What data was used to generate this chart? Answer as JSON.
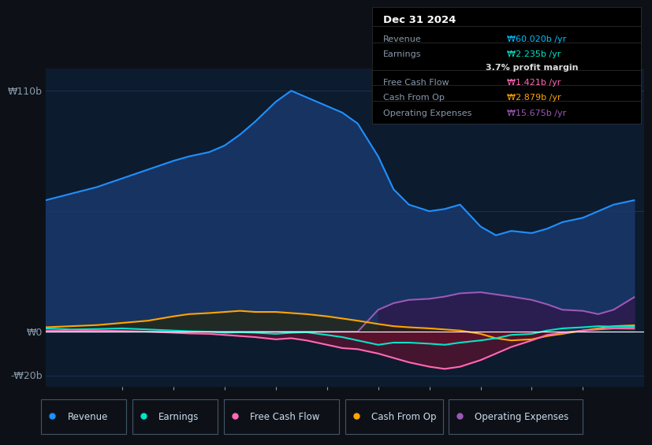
{
  "bg_color": "#0d1117",
  "plot_bg_color": "#0d1b2e",
  "grid_color": "#1e3a5f",
  "title_text": "Dec 31 2024",
  "ylabel_top": "₩110b",
  "ylabel_zero": "₩0",
  "ylabel_bottom": "-₩20b",
  "ylim": [
    -25,
    120
  ],
  "xlim": [
    2013.5,
    2025.2
  ],
  "x_ticks": [
    2015,
    2016,
    2017,
    2018,
    2019,
    2020,
    2021,
    2022,
    2023,
    2024
  ],
  "years": [
    2013.5,
    2014.0,
    2014.5,
    2015.0,
    2015.5,
    2016.0,
    2016.3,
    2016.7,
    2017.0,
    2017.3,
    2017.6,
    2018.0,
    2018.3,
    2018.6,
    2019.0,
    2019.3,
    2019.6,
    2020.0,
    2020.3,
    2020.6,
    2021.0,
    2021.3,
    2021.6,
    2022.0,
    2022.3,
    2022.6,
    2023.0,
    2023.3,
    2023.6,
    2024.0,
    2024.3,
    2024.6,
    2025.0
  ],
  "revenue": [
    60,
    63,
    66,
    70,
    74,
    78,
    80,
    82,
    85,
    90,
    96,
    105,
    110,
    107,
    103,
    100,
    95,
    80,
    65,
    58,
    55,
    56,
    58,
    48,
    44,
    46,
    45,
    47,
    50,
    52,
    55,
    58,
    60
  ],
  "earnings": [
    1.5,
    1.0,
    1.2,
    1.5,
    1.0,
    0.5,
    0.2,
    0.0,
    -0.5,
    -0.3,
    -0.5,
    -1.0,
    -0.5,
    -0.3,
    -1.5,
    -2.5,
    -4.0,
    -6.0,
    -5.0,
    -5.0,
    -5.5,
    -6.0,
    -5.0,
    -4.0,
    -3.0,
    -1.5,
    -1.0,
    0.5,
    1.5,
    2.0,
    2.5,
    2.3,
    2.2
  ],
  "free_cash_flow": [
    0.5,
    0.3,
    0.5,
    0.3,
    0.0,
    -0.5,
    -0.8,
    -1.0,
    -1.5,
    -2.0,
    -2.5,
    -3.5,
    -3.0,
    -4.0,
    -6.0,
    -7.5,
    -8.0,
    -10.0,
    -12.0,
    -14.0,
    -16.0,
    -17.0,
    -16.0,
    -13.0,
    -10.0,
    -7.0,
    -4.0,
    -1.5,
    -0.5,
    0.5,
    1.0,
    1.5,
    1.4
  ],
  "cash_from_op": [
    2.0,
    2.5,
    3.0,
    4.0,
    5.0,
    7.0,
    8.0,
    8.5,
    9.0,
    9.5,
    9.0,
    9.0,
    8.5,
    8.0,
    7.0,
    6.0,
    5.0,
    3.5,
    2.5,
    2.0,
    1.5,
    1.0,
    0.5,
    -1.0,
    -3.0,
    -4.0,
    -3.5,
    -2.0,
    -1.0,
    0.5,
    1.5,
    2.5,
    2.9
  ],
  "operating_expenses": [
    0.0,
    0.0,
    0.0,
    0.0,
    0.0,
    0.0,
    0.0,
    0.0,
    0.0,
    0.0,
    0.0,
    0.0,
    0.0,
    0.0,
    0.0,
    0.0,
    0.0,
    10.0,
    13.0,
    14.5,
    15.0,
    16.0,
    17.5,
    18.0,
    17.0,
    16.0,
    14.5,
    12.5,
    10.0,
    9.5,
    8.0,
    10.0,
    15.7
  ],
  "revenue_color": "#1e90ff",
  "revenue_fill": "#1a3a6e",
  "earnings_color": "#00e5c8",
  "earnings_fill_pos": "#003d35",
  "earnings_fill_neg": "#5a1020",
  "free_cash_flow_color": "#ff69b4",
  "free_cash_flow_fill_neg": "#6b1030",
  "cash_from_op_color": "#ffa500",
  "cash_from_op_fill_pos": "#2a2500",
  "cash_from_op_fill_neg": "#3a1500",
  "operating_expenses_color": "#9b59b6",
  "operating_expenses_fill": "#2d1b4e",
  "zero_line_color": "#ffffff",
  "grid_line_color": "#1e3a5f",
  "tick_color": "#8899aa",
  "label_color": "#8899aa",
  "legend_items": [
    {
      "label": "Revenue",
      "color": "#1e90ff"
    },
    {
      "label": "Earnings",
      "color": "#00e5c8"
    },
    {
      "label": "Free Cash Flow",
      "color": "#ff69b4"
    },
    {
      "label": "Cash From Op",
      "color": "#ffa500"
    },
    {
      "label": "Operating Expenses",
      "color": "#9b59b6"
    }
  ],
  "info_rows": [
    {
      "label": "Revenue",
      "value": "₩60.020b /yr",
      "value_color": "#00bfff",
      "sep_above": false
    },
    {
      "label": "Earnings",
      "value": "₩2.235b /yr",
      "value_color": "#00e5c8",
      "sep_above": true
    },
    {
      "label": "",
      "value": "3.7% profit margin",
      "value_color": "#dddddd",
      "sep_above": false
    },
    {
      "label": "Free Cash Flow",
      "value": "₩1.421b /yr",
      "value_color": "#ff69b4",
      "sep_above": true
    },
    {
      "label": "Cash From Op",
      "value": "₩2.879b /yr",
      "value_color": "#ffa500",
      "sep_above": true
    },
    {
      "label": "Operating Expenses",
      "value": "₩15.675b /yr",
      "value_color": "#9b59b6",
      "sep_above": true
    }
  ]
}
